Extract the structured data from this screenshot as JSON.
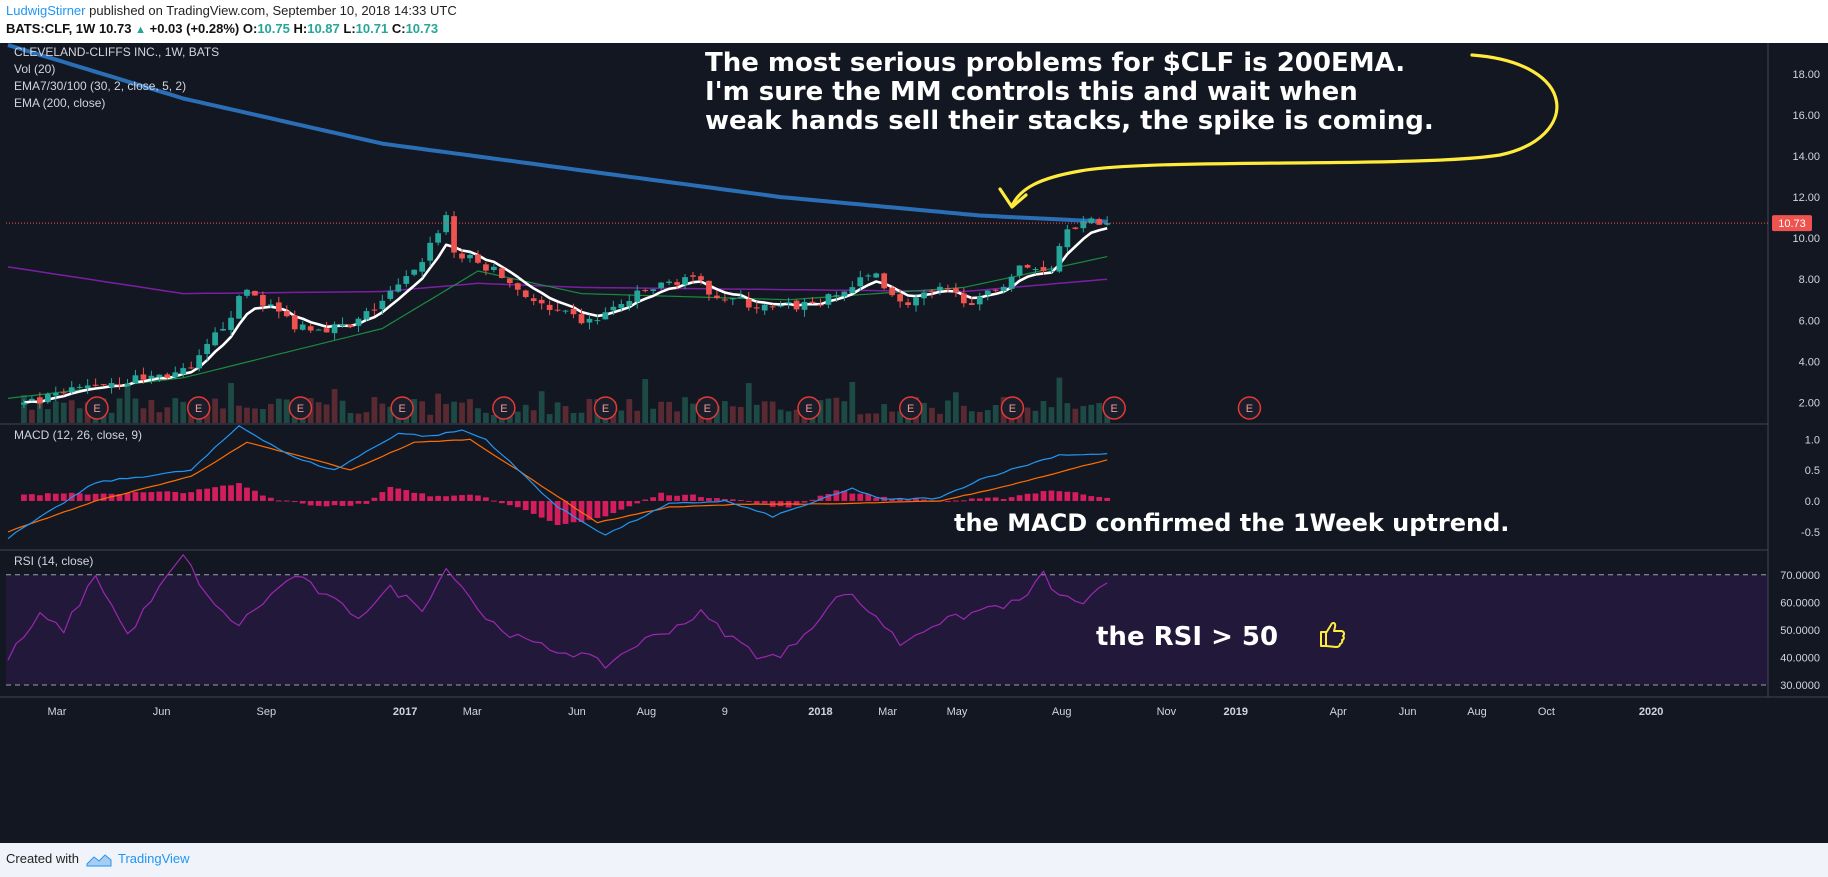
{
  "header": {
    "author": "LudwigStirner",
    "published_text": "published on TradingView.com, September 10, 2018 14:33 UTC",
    "symbol": "BATS:CLF, 1W",
    "last": "10.73",
    "change": "+0.03 (+0.28%)",
    "o_label": "O:",
    "o": "10.75",
    "h_label": "H:",
    "h": "10.87",
    "l_label": "L:",
    "l": "10.71",
    "c_label": "C:",
    "c": "10.73"
  },
  "footer": {
    "created_with": "Created with",
    "brand": "TradingView"
  },
  "colors": {
    "background": "#131722",
    "up": "#26a69a",
    "down": "#ef5350",
    "ema_white": "#ffffff",
    "ema_green": "#1b8a3f",
    "ema_purple": "#7b1fa2",
    "ema200": "#2a6fb5",
    "macd": "#2196f3",
    "signal": "#ff6d00",
    "hist": "#e91e63",
    "rsi": "#9c27b0",
    "annotation": "#ffeb3b"
  },
  "chart_data": [
    {
      "type": "candlestick",
      "legend": [
        "CLEVELAND-CLIFFS INC., 1W, BATS",
        "Vol (20)",
        "EMA7/30/100 (30, 2, close, 5, 2)",
        "EMA (200, close)"
      ],
      "x_ticks": [
        "Mar",
        "Jun",
        "Sep",
        "2017",
        "Mar",
        "Jun",
        "Aug",
        "9",
        "2018",
        "Mar",
        "May",
        "Aug",
        "Nov",
        "2019",
        "Apr",
        "Jun",
        "Aug",
        "Oct",
        "2020"
      ],
      "y_ticks": [
        "2.00",
        "4.00",
        "6.00",
        "8.00",
        "10.00",
        "12.00",
        "14.00",
        "16.00",
        "18.00"
      ],
      "ylim": [
        1.0,
        19.5
      ],
      "last_price_label": "10.73",
      "earnings_marker": "E",
      "earnings_count": 12,
      "annotation": "The most serious problems for $CLF is 200EMA.\nI'm sure the MM controls this and wait when\nweak hands sell their stacks, the spike is coming.",
      "price_anchor_dates": [
        "2016-02-01",
        "2016-04-04",
        "2016-06-27",
        "2016-08-15",
        "2016-09-26",
        "2016-11-14",
        "2017-01-09",
        "2017-02-06",
        "2017-02-13",
        "2017-03-20",
        "2017-05-08",
        "2017-06-12",
        "2017-07-31",
        "2017-09-04",
        "2017-10-09",
        "2017-11-20",
        "2018-01-08",
        "2018-02-19",
        "2018-03-12",
        "2018-04-16",
        "2018-05-21",
        "2018-06-25",
        "2018-07-23",
        "2018-08-06",
        "2018-09-10"
      ],
      "price_anchor_values": [
        1.8,
        2.9,
        3.5,
        7.5,
        5.8,
        5.6,
        8.3,
        11.1,
        9.3,
        8.4,
        6.4,
        5.9,
        7.4,
        8.1,
        7.1,
        6.5,
        7.0,
        8.3,
        6.8,
        7.4,
        6.9,
        8.5,
        8.6,
        10.7,
        10.73
      ],
      "ema200_dates": [
        "2016-01-18",
        "2016-06-20",
        "2016-12-12",
        "2017-06-05",
        "2017-11-27",
        "2018-05-21",
        "2018-09-10"
      ],
      "ema200_values": [
        19.4,
        16.8,
        14.6,
        13.3,
        12.0,
        11.1,
        10.8
      ],
      "ema100_dates": [
        "2016-01-18",
        "2016-06-20",
        "2016-12-12",
        "2017-03-06",
        "2017-06-05",
        "2018-05-07",
        "2018-09-10"
      ],
      "ema100_values": [
        8.6,
        7.3,
        7.4,
        7.8,
        7.6,
        7.4,
        8.0
      ],
      "ema30_dates": [
        "2016-01-18",
        "2016-06-20",
        "2016-12-12",
        "2017-03-06",
        "2017-06-05",
        "2017-12-04",
        "2018-05-07",
        "2018-09-10"
      ],
      "ema30_values": [
        2.2,
        3.2,
        5.6,
        8.4,
        7.3,
        7.0,
        7.6,
        9.1
      ]
    },
    {
      "type": "line",
      "title": "MACD (12, 26, close, 9)",
      "y_ticks": [
        "-0.5",
        "0.0",
        "0.5",
        "1.0"
      ],
      "ylim": [
        -0.78,
        1.25
      ],
      "annotation": "the MACD confirmed the 1Week uptrend.",
      "macd_dates": [
        "2016-01-18",
        "2016-04-04",
        "2016-06-27",
        "2016-08-08",
        "2016-09-26",
        "2016-10-31",
        "2016-12-26",
        "2017-01-23",
        "2017-02-20",
        "2017-03-13",
        "2017-05-15",
        "2017-06-26",
        "2017-08-21",
        "2017-10-09",
        "2017-11-20",
        "2018-01-29",
        "2018-02-26",
        "2018-04-16",
        "2018-05-21",
        "2018-07-30",
        "2018-09-10"
      ],
      "macd_values": [
        -0.6,
        0.3,
        0.5,
        1.22,
        0.7,
        0.5,
        1.1,
        1.05,
        1.15,
        1.0,
        -0.1,
        -0.55,
        -0.05,
        0.0,
        -0.25,
        0.2,
        0.02,
        0.05,
        0.35,
        0.75,
        0.76
      ],
      "signal_dates": [
        "2016-01-18",
        "2016-04-04",
        "2016-06-27",
        "2016-08-15",
        "2016-10-17",
        "2016-11-14",
        "2017-01-09",
        "2017-02-27",
        "2017-04-10",
        "2017-06-19",
        "2017-08-21",
        "2017-10-30",
        "2018-01-08",
        "2018-04-16",
        "2018-06-04",
        "2018-09-10"
      ],
      "signal_values": [
        -0.5,
        0.0,
        0.4,
        0.95,
        0.65,
        0.5,
        0.95,
        1.0,
        0.5,
        -0.35,
        -0.1,
        -0.05,
        -0.05,
        0.0,
        0.2,
        0.67
      ],
      "hist_dates": [
        "2016-01-18",
        "2016-04-04",
        "2016-06-27",
        "2016-08-08",
        "2016-09-05",
        "2016-10-17",
        "2016-11-28",
        "2016-12-19",
        "2017-01-23",
        "2017-02-27",
        "2017-04-03",
        "2017-05-15",
        "2017-06-26",
        "2017-08-14",
        "2017-10-09",
        "2017-12-04",
        "2018-01-15",
        "2018-02-26",
        "2018-04-23",
        "2018-06-11",
        "2018-07-23",
        "2018-09-10"
      ],
      "hist_values": [
        0.1,
        0.12,
        0.15,
        0.28,
        0.05,
        -0.08,
        -0.05,
        0.22,
        0.08,
        0.12,
        -0.05,
        -0.4,
        -0.25,
        0.12,
        0.05,
        -0.12,
        0.18,
        0.05,
        0.0,
        0.05,
        0.18,
        0.06
      ]
    },
    {
      "type": "line",
      "title": "RSI (14, close)",
      "y_ticks": [
        "30.0000",
        "40.0000",
        "50.0000",
        "60.0000",
        "70.0000"
      ],
      "ylim": [
        26,
        79
      ],
      "bands": [
        30,
        70
      ],
      "annotation": "the RSI > 50",
      "rsi_dates": [
        "2016-01-18",
        "2016-02-15",
        "2016-03-07",
        "2016-04-04",
        "2016-05-02",
        "2016-05-30",
        "2016-06-20",
        "2016-07-18",
        "2016-08-08",
        "2016-08-29",
        "2016-09-26",
        "2016-10-24",
        "2016-11-21",
        "2016-12-19",
        "2017-01-16",
        "2017-02-06",
        "2017-02-13",
        "2017-03-13",
        "2017-04-10",
        "2017-05-08",
        "2017-06-05",
        "2017-06-26",
        "2017-07-24",
        "2017-08-21",
        "2017-09-18",
        "2017-10-09",
        "2017-11-06",
        "2017-11-27",
        "2017-12-25",
        "2018-01-22",
        "2018-02-19",
        "2018-03-12",
        "2018-04-09",
        "2018-05-07",
        "2018-05-28",
        "2018-06-25",
        "2018-07-16",
        "2018-07-30",
        "2018-08-20",
        "2018-09-10"
      ],
      "rsi_values": [
        40,
        55,
        50,
        70,
        48,
        65,
        77,
        58,
        52,
        60,
        70,
        62,
        55,
        65,
        58,
        72,
        70,
        54,
        47,
        43,
        41,
        37,
        45,
        50,
        56,
        49,
        41,
        40,
        52,
        64,
        55,
        45,
        52,
        55,
        58,
        60,
        70,
        62,
        60,
        66
      ]
    }
  ]
}
